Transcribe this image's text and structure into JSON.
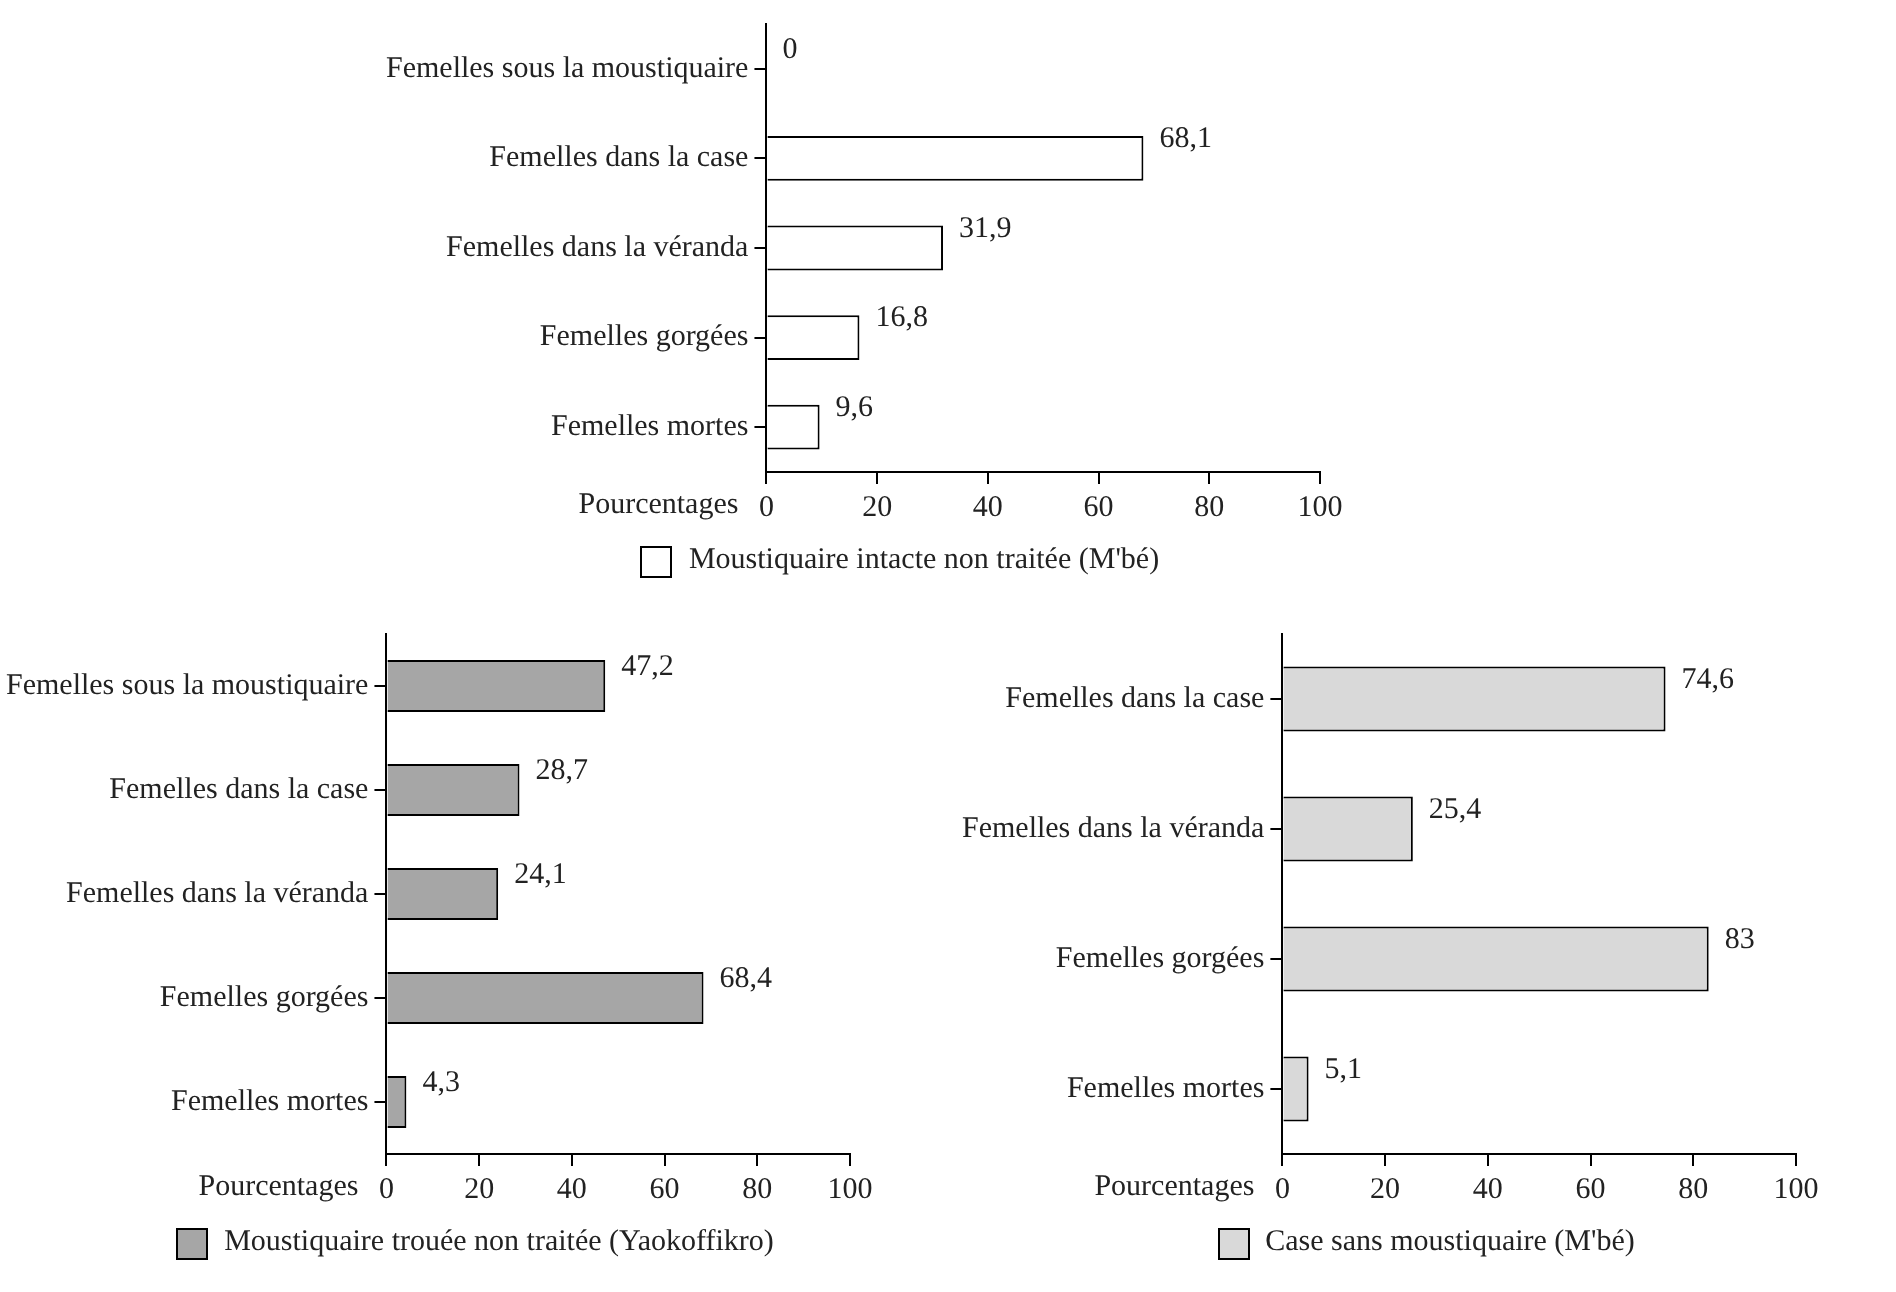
{
  "chart_data": [
    {
      "type": "bar",
      "orientation": "horizontal",
      "categories": [
        "Femelles sous la moustiquaire",
        "Femelles dans la case",
        "Femelles dans la véranda",
        "Femelles gorgées",
        "Femelles mortes"
      ],
      "series": [
        {
          "name": "Moustiquaire  intacte non traitée (M'bé)",
          "color": "#ffffff",
          "values": [
            0,
            68.1,
            31.9,
            16.8,
            9.6
          ],
          "value_labels": [
            "0",
            "68,1",
            "31,9",
            "16,8",
            "9,6"
          ]
        }
      ],
      "xlabel": "Pourcentages",
      "xlim": [
        0,
        100
      ],
      "xticks": [
        0,
        20,
        40,
        60,
        80,
        100
      ],
      "grid": false,
      "legend": "bottom"
    },
    {
      "type": "bar",
      "orientation": "horizontal",
      "categories": [
        "Femelles sous la moustiquaire",
        "Femelles dans la case",
        "Femelles dans la véranda",
        "Femelles gorgées",
        "Femelles mortes"
      ],
      "series": [
        {
          "name": "Moustiquaire  trouée non traitée (Yaokoffikro)",
          "color": "#a6a6a6",
          "values": [
            47.2,
            28.7,
            24.1,
            68.4,
            4.3
          ],
          "value_labels": [
            "47,2",
            "28,7",
            "24,1",
            "68,4",
            "4,3"
          ]
        }
      ],
      "xlabel": "Pourcentages",
      "xlim": [
        0,
        100
      ],
      "xticks": [
        0,
        20,
        40,
        60,
        80,
        100
      ],
      "grid": false,
      "legend": "bottom"
    },
    {
      "type": "bar",
      "orientation": "horizontal",
      "categories": [
        "Femelles dans la case",
        "Femelles dans la véranda",
        "Femelles gorgées",
        "Femelles mortes"
      ],
      "series": [
        {
          "name": "Case sans moustiquaire (M'bé)",
          "color": "#d9d9d9",
          "values": [
            74.6,
            25.4,
            83,
            5.1
          ],
          "value_labels": [
            "74,6",
            "25,4",
            "83",
            "5,1"
          ]
        }
      ],
      "xlabel": "Pourcentages",
      "xlim": [
        0,
        100
      ],
      "xticks": [
        0,
        20,
        40,
        60,
        80,
        100
      ],
      "grid": false,
      "legend": "bottom"
    }
  ]
}
